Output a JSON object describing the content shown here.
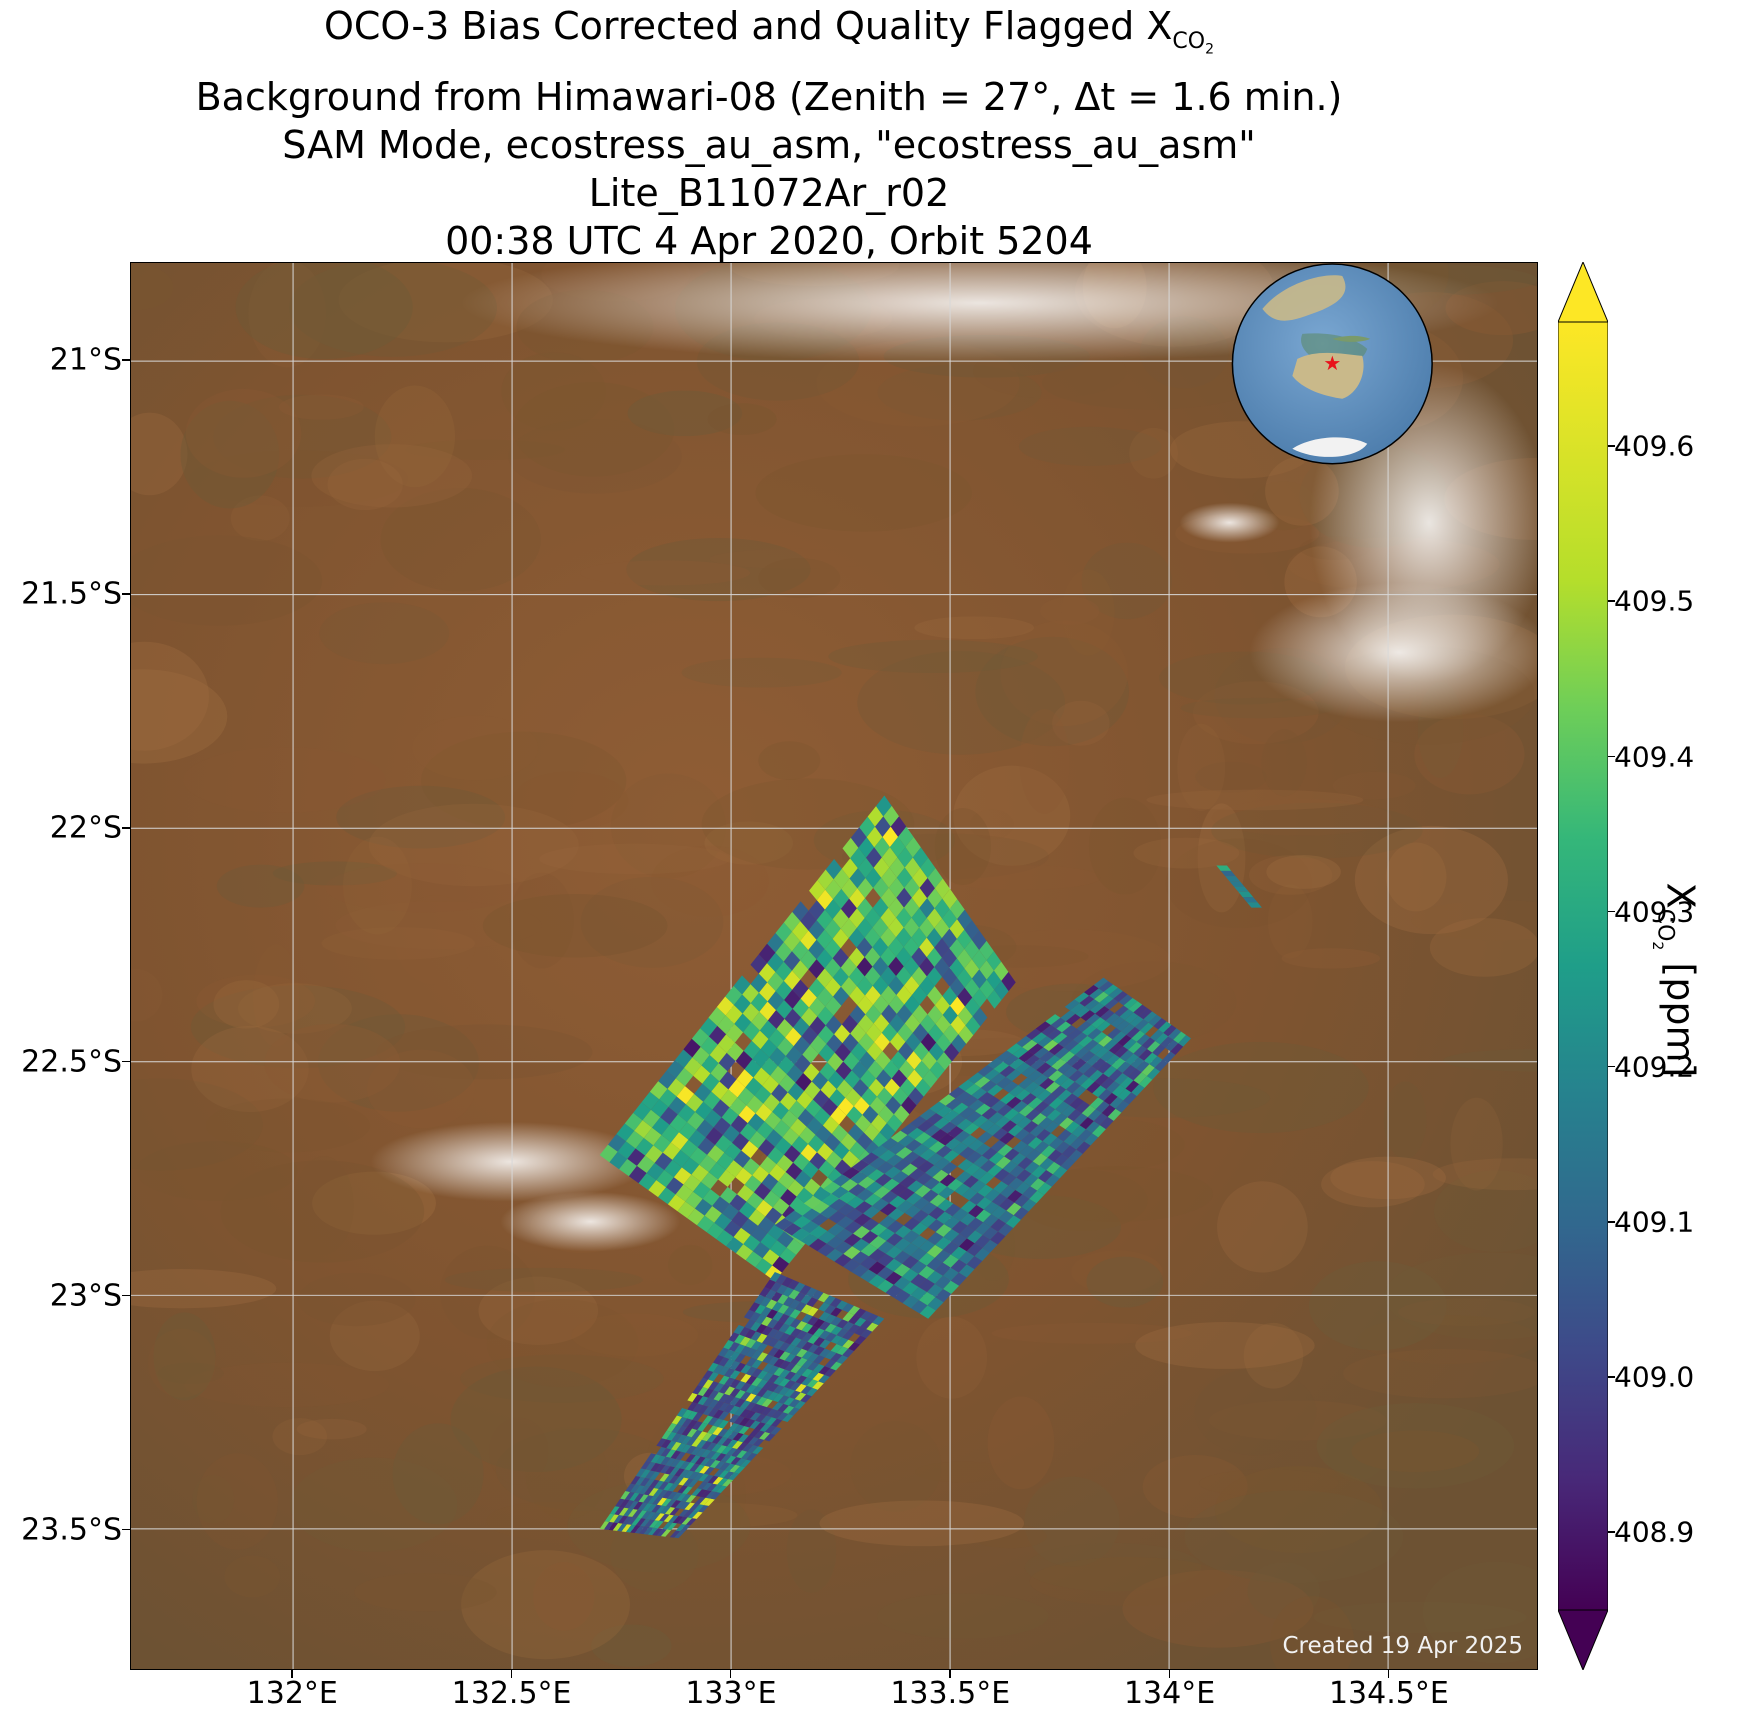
{
  "title": {
    "line1_prefix": "OCO-3 Bias Corrected and Quality Flagged X",
    "line1_sub": "CO",
    "line1_subsub": "2",
    "line2": "Background from Himawari-08 (Zenith = 27°, Δt =  1.6 min.)",
    "line3": "SAM Mode, ecostress_au_asm, \"ecostress_au_asm\"",
    "line4": "Lite_B11072Ar_r02",
    "line5": "00:38 UTC 4 Apr 2020, Orbit 5204"
  },
  "map": {
    "lat_ticks": [
      "21°S",
      "21.5°S",
      "22°S",
      "22.5°S",
      "23°S",
      "23.5°S"
    ],
    "lat_values": [
      -21.0,
      -21.5,
      -22.0,
      -22.5,
      -23.0,
      -23.5
    ],
    "lon_ticks": [
      "132°E",
      "132.5°E",
      "133°E",
      "133.5°E",
      "134°E",
      "134.5°E"
    ],
    "lon_values": [
      132.0,
      132.5,
      133.0,
      133.5,
      134.0,
      134.5
    ],
    "lat_range": [
      -23.8,
      -20.79
    ],
    "lon_range": [
      131.63,
      134.84
    ],
    "credit": "Created 19 Apr 2025",
    "background_colors": [
      "#8a5a34",
      "#7a5530",
      "#6e5a38",
      "#9a6a3e"
    ],
    "inset_globe": {
      "marker": "red-star",
      "ocean_color": "#5b8fbf",
      "land_color": "#c9b98a"
    }
  },
  "colorbar": {
    "label_prefix": "X",
    "label_sub": "CO",
    "label_subsub": "2",
    "label_suffix": " [ppm]",
    "ticks": [
      "409.6",
      "409.5",
      "409.4",
      "409.3",
      "409.2",
      "409.1",
      "409.0",
      "408.9"
    ],
    "tick_values": [
      409.6,
      409.5,
      409.4,
      409.3,
      409.2,
      409.1,
      409.0,
      408.9
    ],
    "vmin": 408.85,
    "vmax": 409.68,
    "colormap": "viridis",
    "extend": "both"
  },
  "chart_data": {
    "type": "heatmap",
    "variable": "XCO2 [ppm]",
    "swaths": [
      {
        "name": "upper-left-block",
        "corners": [
          [
            132.7,
            -22.7
          ],
          [
            133.35,
            -21.93
          ],
          [
            133.65,
            -22.33
          ],
          [
            133.1,
            -22.97
          ]
        ],
        "value_range": [
          408.9,
          409.68
        ],
        "typical": 409.45
      },
      {
        "name": "lower-right-strip",
        "corners": [
          [
            133.1,
            -22.85
          ],
          [
            133.85,
            -22.32
          ],
          [
            134.05,
            -22.45
          ],
          [
            133.45,
            -23.05
          ]
        ],
        "value_range": [
          408.9,
          409.5
        ],
        "typical": 409.15
      },
      {
        "name": "southwest-tail",
        "corners": [
          [
            132.7,
            -23.5
          ],
          [
            133.1,
            -22.95
          ],
          [
            133.35,
            -23.05
          ],
          [
            132.88,
            -23.52
          ]
        ],
        "value_range": [
          408.9,
          409.65
        ],
        "typical": 409.1
      },
      {
        "name": "small-northeast-strip",
        "corners": [
          [
            134.12,
            -22.08
          ],
          [
            134.2,
            -22.17
          ]
        ],
        "value_range": [
          409.1,
          409.4
        ],
        "typical": 409.25
      }
    ]
  }
}
